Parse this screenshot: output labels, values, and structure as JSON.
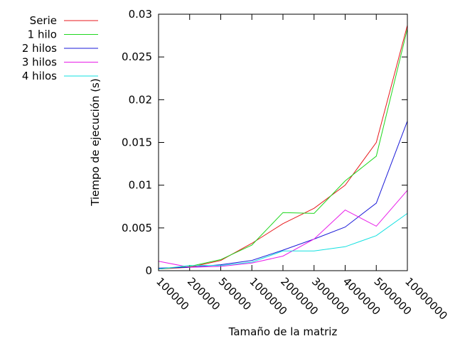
{
  "chart_data": {
    "type": "line",
    "xlabel": "Tamaño de la matriz",
    "ylabel": "Tiempo de ejecución (s)",
    "categories": [
      "100000",
      "200000",
      "500000",
      "1000000",
      "2000000",
      "3000000",
      "4000000",
      "5000000",
      "10000000"
    ],
    "ylim": [
      0,
      0.03
    ],
    "yticks": [
      "0",
      "0.005",
      "0.01",
      "0.015",
      "0.02",
      "0.025",
      "0.03"
    ],
    "legend_position": "top-left, outside plot",
    "grid": false,
    "series": [
      {
        "name": "Serie",
        "color": "#e8191c",
        "values": [
          0.0002,
          0.0004,
          0.0012,
          0.0032,
          0.0055,
          0.0073,
          0.01,
          0.015,
          0.0287
        ]
      },
      {
        "name": "1 hilo",
        "color": "#1fd71f",
        "values": [
          0.0002,
          0.0005,
          0.0013,
          0.003,
          0.0068,
          0.0067,
          0.0105,
          0.0134,
          0.0283
        ]
      },
      {
        "name": "2 hilos",
        "color": "#1a1ad8",
        "values": [
          0.0003,
          0.0004,
          0.0007,
          0.0012,
          0.0024,
          0.0037,
          0.0051,
          0.0079,
          0.0175
        ]
      },
      {
        "name": "3 hilos",
        "color": "#e81ce8",
        "values": [
          0.0011,
          0.0004,
          0.0005,
          0.0009,
          0.0017,
          0.0037,
          0.0071,
          0.0052,
          0.0094
        ]
      },
      {
        "name": "4 hilos",
        "color": "#12e0e0",
        "values": [
          0.0002,
          0.0006,
          0.0006,
          0.001,
          0.0023,
          0.0023,
          0.0028,
          0.0041,
          0.0067
        ]
      }
    ]
  }
}
